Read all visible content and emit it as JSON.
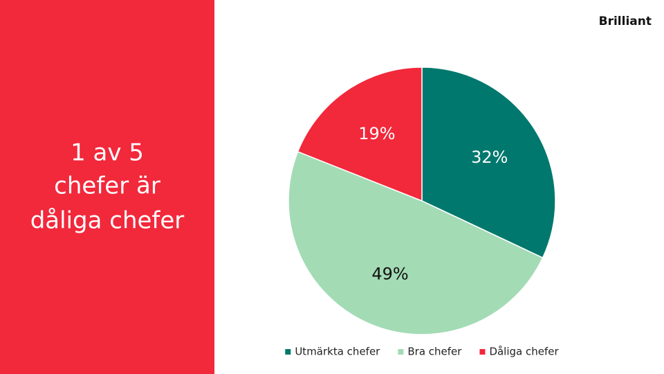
{
  "headline": [
    "1 av 5",
    "chefer är",
    "dåliga chefer"
  ],
  "logo": "Brilliant",
  "chart_data": {
    "type": "pie",
    "categories": [
      "Utmärkta chefer",
      "Bra chefer",
      "Dåliga chefer"
    ],
    "values": [
      32,
      49,
      19
    ],
    "value_labels": [
      "32%",
      "49%",
      "19%"
    ],
    "colors": [
      "#00786d",
      "#a3dbb5",
      "#f2283b"
    ],
    "legend": "bottom"
  }
}
